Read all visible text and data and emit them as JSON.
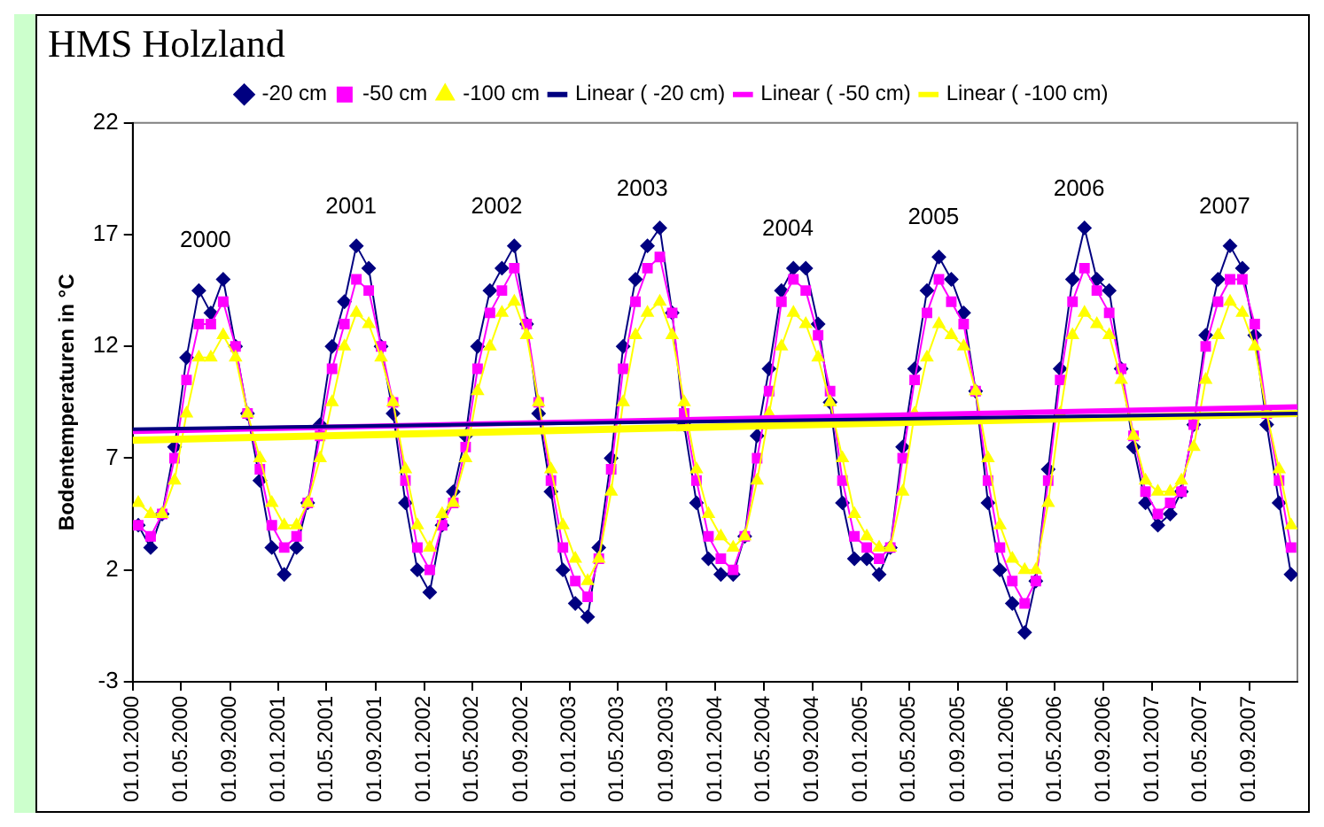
{
  "chart_data": {
    "type": "line",
    "title": "HMS Holzland",
    "ylabel": "Bodentemperaturen in °C",
    "x": [
      "2000-01-15",
      "2000-02-15",
      "2000-03-15",
      "2000-04-15",
      "2000-05-15",
      "2000-06-15",
      "2000-07-15",
      "2000-08-15",
      "2000-09-15",
      "2000-10-15",
      "2000-11-15",
      "2000-12-15",
      "2001-01-15",
      "2001-02-15",
      "2001-03-15",
      "2001-04-15",
      "2001-05-15",
      "2001-06-15",
      "2001-07-15",
      "2001-08-15",
      "2001-09-15",
      "2001-10-15",
      "2001-11-15",
      "2001-12-15",
      "2002-01-15",
      "2002-02-15",
      "2002-03-15",
      "2002-04-15",
      "2002-05-15",
      "2002-06-15",
      "2002-07-15",
      "2002-08-15",
      "2002-09-15",
      "2002-10-15",
      "2002-11-15",
      "2002-12-15",
      "2003-01-15",
      "2003-02-15",
      "2003-03-15",
      "2003-04-15",
      "2003-05-15",
      "2003-06-15",
      "2003-07-15",
      "2003-08-15",
      "2003-09-15",
      "2003-10-15",
      "2003-11-15",
      "2003-12-15",
      "2004-01-15",
      "2004-02-15",
      "2004-03-15",
      "2004-04-15",
      "2004-05-15",
      "2004-06-15",
      "2004-07-15",
      "2004-08-15",
      "2004-09-15",
      "2004-10-15",
      "2004-11-15",
      "2004-12-15",
      "2005-01-15",
      "2005-02-15",
      "2005-03-15",
      "2005-04-15",
      "2005-05-15",
      "2005-06-15",
      "2005-07-15",
      "2005-08-15",
      "2005-09-15",
      "2005-10-15",
      "2005-11-15",
      "2005-12-15",
      "2006-01-15",
      "2006-02-15",
      "2006-03-15",
      "2006-04-15",
      "2006-05-15",
      "2006-06-15",
      "2006-07-15",
      "2006-08-15",
      "2006-09-15",
      "2006-10-15",
      "2006-11-15",
      "2006-12-15",
      "2007-01-15",
      "2007-02-15",
      "2007-03-15",
      "2007-04-15",
      "2007-05-15",
      "2007-06-15",
      "2007-07-15",
      "2007-08-15",
      "2007-09-15",
      "2007-10-15",
      "2007-11-15",
      "2007-12-15"
    ],
    "series": [
      {
        "name": "-20 cm",
        "color": "#000080",
        "marker": "diamond",
        "values": [
          4.0,
          3.0,
          4.5,
          7.5,
          11.5,
          14.5,
          13.5,
          15.0,
          12.0,
          9.0,
          6.0,
          3.0,
          1.8,
          3.0,
          5.0,
          8.5,
          12.0,
          14.0,
          16.5,
          15.5,
          12.0,
          9.0,
          5.0,
          2.0,
          1.0,
          4.0,
          5.5,
          8.0,
          12.0,
          14.5,
          15.5,
          16.5,
          13.0,
          9.0,
          5.5,
          2.0,
          0.5,
          -0.1,
          3.0,
          7.0,
          12.0,
          15.0,
          16.5,
          17.3,
          13.5,
          8.5,
          5.0,
          2.5,
          1.8,
          1.8,
          3.5,
          8.0,
          11.0,
          14.5,
          15.5,
          15.5,
          13.0,
          9.5,
          5.0,
          2.5,
          2.5,
          1.8,
          3.0,
          7.5,
          11.0,
          14.5,
          16.0,
          15.0,
          13.5,
          10.0,
          5.0,
          2.0,
          0.5,
          -0.8,
          1.5,
          6.5,
          11.0,
          15.0,
          17.3,
          15.0,
          14.5,
          11.0,
          7.5,
          5.0,
          4.0,
          4.5,
          5.5,
          8.5,
          12.5,
          15.0,
          16.5,
          15.5,
          12.5,
          8.5,
          5.0,
          1.8
        ]
      },
      {
        "name": "-50 cm",
        "color": "#ff00ff",
        "marker": "square",
        "values": [
          4.0,
          3.5,
          4.5,
          7.0,
          10.5,
          13.0,
          13.0,
          14.0,
          12.0,
          9.0,
          6.5,
          4.0,
          3.0,
          3.5,
          5.0,
          8.0,
          11.0,
          13.0,
          15.0,
          14.5,
          12.0,
          9.5,
          6.0,
          3.0,
          2.0,
          4.0,
          5.0,
          7.5,
          11.0,
          13.5,
          14.5,
          15.5,
          13.0,
          9.5,
          6.0,
          3.0,
          1.5,
          0.8,
          2.5,
          6.5,
          11.0,
          14.0,
          15.5,
          16.0,
          13.5,
          9.0,
          6.0,
          3.5,
          2.5,
          2.0,
          3.5,
          7.0,
          10.0,
          14.0,
          15.0,
          14.5,
          12.5,
          10.0,
          6.0,
          3.5,
          3.0,
          2.5,
          3.0,
          7.0,
          10.5,
          13.5,
          15.0,
          14.0,
          13.0,
          10.0,
          6.0,
          3.0,
          1.5,
          0.5,
          1.5,
          6.0,
          10.5,
          14.0,
          15.5,
          14.5,
          13.5,
          11.0,
          8.0,
          5.5,
          4.5,
          5.0,
          5.5,
          8.5,
          12.0,
          14.0,
          15.0,
          15.0,
          13.0,
          9.0,
          6.0,
          3.0
        ]
      },
      {
        "name": "-100 cm",
        "color": "#ffff00",
        "marker": "triangle",
        "values": [
          5.0,
          4.5,
          4.5,
          6.0,
          9.0,
          11.5,
          11.5,
          12.5,
          11.5,
          9.0,
          7.0,
          5.0,
          4.0,
          4.0,
          5.0,
          7.0,
          9.5,
          12.0,
          13.5,
          13.0,
          11.5,
          9.5,
          6.5,
          4.0,
          3.0,
          4.5,
          5.0,
          7.0,
          10.0,
          12.0,
          13.5,
          14.0,
          12.5,
          9.5,
          6.5,
          4.0,
          2.5,
          1.5,
          2.5,
          5.5,
          9.5,
          12.5,
          13.5,
          14.0,
          12.5,
          9.5,
          6.5,
          4.5,
          3.5,
          3.0,
          3.5,
          6.0,
          9.0,
          12.0,
          13.5,
          13.0,
          11.5,
          9.5,
          7.0,
          4.5,
          3.5,
          3.0,
          3.0,
          5.5,
          9.0,
          11.5,
          13.0,
          12.5,
          12.0,
          10.0,
          7.0,
          4.0,
          2.5,
          2.0,
          2.0,
          5.0,
          9.0,
          12.5,
          13.5,
          13.0,
          12.5,
          10.5,
          8.0,
          6.0,
          5.5,
          5.5,
          6.0,
          7.5,
          10.5,
          12.5,
          14.0,
          13.5,
          12.0,
          9.0,
          6.5,
          4.0
        ]
      },
      {
        "name": "Linear ( -20 cm)",
        "color": "#000080",
        "marker": "none",
        "x": [
          "2000-01-01",
          "2007-12-31"
        ],
        "values": [
          8.3,
          9.0
        ]
      },
      {
        "name": "Linear ( -50 cm)",
        "color": "#ff00ff",
        "marker": "none",
        "x": [
          "2000-01-01",
          "2007-12-31"
        ],
        "values": [
          8.2,
          9.3
        ]
      },
      {
        "name": "Linear ( -100 cm)",
        "color": "#ffff00",
        "marker": "none",
        "x": [
          "2000-01-01",
          "2007-12-31"
        ],
        "values": [
          7.8,
          9.0
        ]
      }
    ],
    "xlim": [
      "2000-01-01",
      "2007-12-31"
    ],
    "xticks": [
      {
        "value": "2000-01-01",
        "label": "01.01.2000"
      },
      {
        "value": "2000-05-01",
        "label": "01.05.2000"
      },
      {
        "value": "2000-09-01",
        "label": "01.09.2000"
      },
      {
        "value": "2001-01-01",
        "label": "01.01.2001"
      },
      {
        "value": "2001-05-01",
        "label": "01.05.2001"
      },
      {
        "value": "2001-09-01",
        "label": "01.09.2001"
      },
      {
        "value": "2002-01-01",
        "label": "01.01.2002"
      },
      {
        "value": "2002-05-01",
        "label": "01.05.2002"
      },
      {
        "value": "2002-09-01",
        "label": "01.09.2002"
      },
      {
        "value": "2003-01-01",
        "label": "01.01.2003"
      },
      {
        "value": "2003-05-01",
        "label": "01.05.2003"
      },
      {
        "value": "2003-09-01",
        "label": "01.09.2003"
      },
      {
        "value": "2004-01-01",
        "label": "01.01.2004"
      },
      {
        "value": "2004-05-01",
        "label": "01.05.2004"
      },
      {
        "value": "2004-09-01",
        "label": "01.09.2004"
      },
      {
        "value": "2005-01-01",
        "label": "01.01.2005"
      },
      {
        "value": "2005-05-01",
        "label": "01.05.2005"
      },
      {
        "value": "2005-09-01",
        "label": "01.09.2005"
      },
      {
        "value": "2006-01-01",
        "label": "01.01.2006"
      },
      {
        "value": "2006-05-01",
        "label": "01.05.2006"
      },
      {
        "value": "2006-09-01",
        "label": "01.09.2006"
      },
      {
        "value": "2007-01-01",
        "label": "01.01.2007"
      },
      {
        "value": "2007-05-01",
        "label": "01.05.2007"
      },
      {
        "value": "2007-09-01",
        "label": "01.09.2007"
      }
    ],
    "ylim": [
      -3,
      22
    ],
    "yticks": [
      -3,
      2,
      7,
      12,
      17,
      22
    ],
    "grid": false,
    "legend": "top",
    "line_style": "solid",
    "annotations": [
      "2000",
      "2001",
      "2002",
      "2003",
      "2004",
      "2005",
      "2006",
      "2007"
    ]
  }
}
